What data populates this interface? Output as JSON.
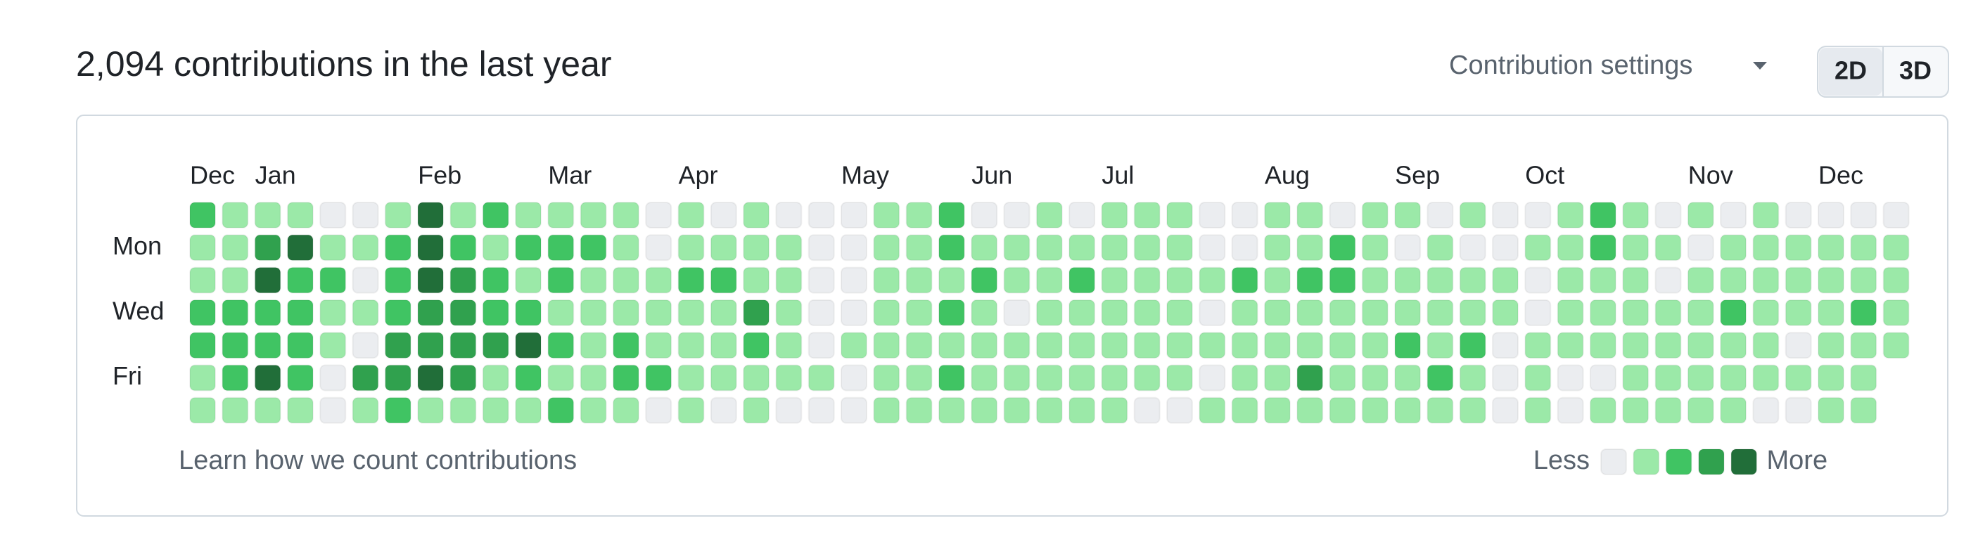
{
  "header": {
    "title": "2,094 contributions in the last year",
    "settings": "Contribution settings",
    "view_buttons": [
      "2D",
      "3D"
    ]
  },
  "calendar": {
    "months": [
      "Dec",
      null,
      "Jan",
      null,
      null,
      null,
      null,
      "Feb",
      null,
      null,
      null,
      "Mar",
      null,
      null,
      null,
      "Apr",
      null,
      null,
      null,
      null,
      "May",
      null,
      null,
      null,
      "Jun",
      null,
      null,
      null,
      "Jul",
      null,
      null,
      null,
      null,
      "Aug",
      null,
      null,
      null,
      "Sep",
      null,
      null,
      null,
      "Oct",
      null,
      null,
      null,
      null,
      "Nov",
      null,
      null,
      null,
      "Dec",
      null,
      null
    ],
    "days": [
      null,
      "Mon",
      null,
      "Wed",
      null,
      "Fri",
      null
    ],
    "colors": [
      "#ebedf0",
      "#9be9a8",
      "#40c463",
      "#30a14e",
      "#216e39"
    ],
    "levels": [
      [
        2,
        1,
        1,
        1,
        0,
        0,
        1,
        4,
        1,
        2,
        1,
        1,
        1,
        1,
        0,
        1,
        0,
        1,
        0,
        0,
        0,
        1,
        1,
        2,
        0,
        0,
        1,
        0,
        1,
        1,
        1,
        0,
        0,
        1,
        1,
        0,
        1,
        1,
        0,
        1,
        0,
        0,
        1,
        2,
        1,
        0,
        1,
        0,
        1,
        0,
        0,
        0,
        0
      ],
      [
        1,
        1,
        3,
        4,
        1,
        1,
        2,
        4,
        2,
        1,
        2,
        2,
        2,
        1,
        0,
        1,
        1,
        1,
        1,
        0,
        0,
        1,
        1,
        2,
        1,
        1,
        1,
        1,
        1,
        1,
        1,
        0,
        0,
        1,
        1,
        2,
        1,
        0,
        1,
        0,
        0,
        1,
        1,
        2,
        1,
        1,
        0,
        1,
        1,
        1,
        1,
        1,
        1
      ],
      [
        1,
        1,
        4,
        2,
        2,
        0,
        2,
        4,
        3,
        2,
        1,
        2,
        1,
        1,
        1,
        2,
        2,
        1,
        1,
        0,
        0,
        1,
        1,
        1,
        2,
        1,
        1,
        2,
        1,
        1,
        1,
        1,
        2,
        1,
        2,
        2,
        1,
        1,
        1,
        1,
        1,
        0,
        1,
        1,
        1,
        0,
        1,
        1,
        1,
        1,
        1,
        1,
        1
      ],
      [
        2,
        2,
        2,
        2,
        1,
        1,
        2,
        3,
        3,
        2,
        2,
        1,
        1,
        1,
        1,
        1,
        1,
        3,
        1,
        0,
        0,
        1,
        1,
        2,
        1,
        0,
        1,
        1,
        1,
        1,
        1,
        0,
        1,
        1,
        1,
        1,
        1,
        1,
        1,
        1,
        1,
        0,
        1,
        1,
        1,
        1,
        1,
        2,
        1,
        1,
        1,
        2,
        1
      ],
      [
        2,
        2,
        2,
        2,
        1,
        0,
        3,
        3,
        3,
        3,
        4,
        2,
        1,
        2,
        1,
        1,
        1,
        2,
        1,
        0,
        1,
        1,
        1,
        1,
        1,
        1,
        1,
        1,
        1,
        1,
        1,
        1,
        1,
        1,
        1,
        1,
        1,
        2,
        1,
        2,
        0,
        1,
        1,
        1,
        1,
        1,
        1,
        1,
        1,
        0,
        1,
        1,
        1
      ],
      [
        1,
        2,
        4,
        2,
        0,
        3,
        3,
        4,
        3,
        1,
        2,
        1,
        1,
        2,
        2,
        1,
        1,
        1,
        1,
        1,
        0,
        1,
        1,
        2,
        1,
        1,
        1,
        1,
        1,
        1,
        1,
        0,
        1,
        1,
        3,
        1,
        1,
        1,
        2,
        1,
        0,
        1,
        0,
        0,
        1,
        1,
        1,
        1,
        1,
        1,
        1,
        1,
        null
      ],
      [
        1,
        1,
        1,
        1,
        0,
        1,
        2,
        1,
        1,
        1,
        1,
        2,
        1,
        1,
        0,
        1,
        0,
        1,
        0,
        0,
        0,
        1,
        1,
        1,
        1,
        1,
        1,
        1,
        1,
        0,
        0,
        1,
        1,
        1,
        1,
        1,
        1,
        1,
        1,
        1,
        0,
        1,
        0,
        1,
        1,
        1,
        1,
        1,
        0,
        0,
        1,
        1,
        null
      ]
    ]
  },
  "footer": {
    "link": "Learn how we count contributions",
    "less": "Less",
    "more": "More"
  }
}
